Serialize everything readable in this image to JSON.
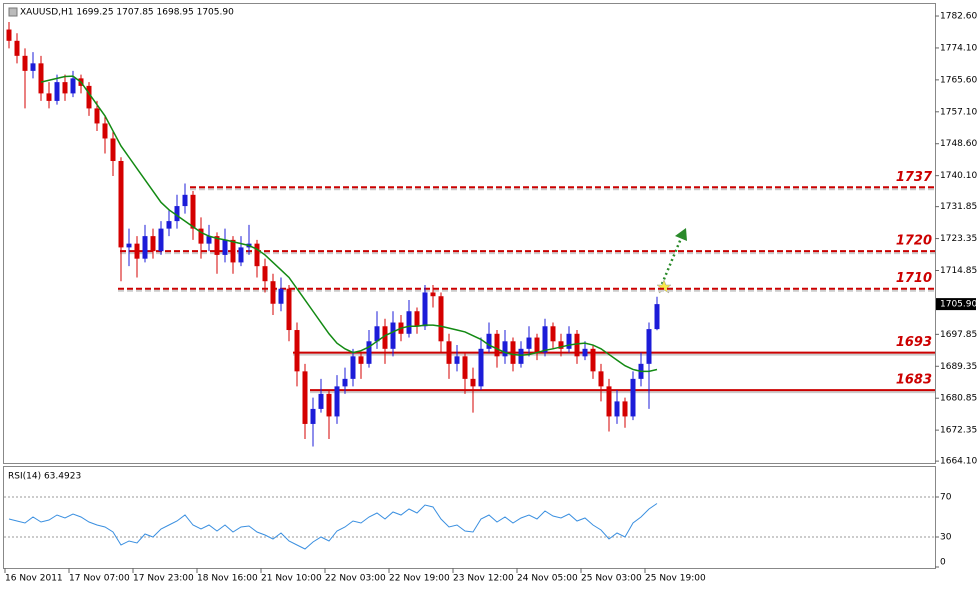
{
  "chart_data": [
    {
      "type": "candlestick",
      "title": "XAUUSD,H1  1699.25 1707.85 1698.95 1705.90",
      "categories": [
        "16 Nov 2011",
        null,
        null,
        null,
        null,
        null,
        null,
        null,
        "17 Nov 07:00",
        null,
        null,
        null,
        null,
        null,
        null,
        null,
        "17 Nov 23:00",
        null,
        null,
        null,
        null,
        null,
        null,
        null,
        "18 Nov 16:00",
        null,
        null,
        null,
        null,
        null,
        null,
        null,
        "21 Nov 10:00",
        null,
        null,
        null,
        null,
        null,
        null,
        null,
        "22 Nov 03:00",
        null,
        null,
        null,
        null,
        null,
        null,
        null,
        "22 Nov 19:00",
        null,
        null,
        null,
        null,
        null,
        null,
        null,
        "23 Nov 12:00",
        null,
        null,
        null,
        null,
        null,
        null,
        null,
        "24 Nov 05:00",
        null,
        null,
        null,
        null,
        null,
        null,
        null,
        "25 Nov 03:00",
        null,
        null,
        null,
        null,
        null,
        null,
        null,
        "25 Nov 19:00",
        null
      ],
      "ohlc": [
        [
          1779,
          1781,
          1774,
          1776
        ],
        [
          1776,
          1778,
          1770,
          1772
        ],
        [
          1772,
          1774,
          1758,
          1768
        ],
        [
          1768,
          1773,
          1766,
          1770
        ],
        [
          1770,
          1772,
          1760,
          1762
        ],
        [
          1762,
          1765,
          1758,
          1760
        ],
        [
          1760,
          1767,
          1759,
          1765
        ],
        [
          1765,
          1767,
          1760,
          1762
        ],
        [
          1762,
          1768,
          1761,
          1766
        ],
        [
          1766,
          1767,
          1762,
          1764
        ],
        [
          1764,
          1765,
          1756,
          1758
        ],
        [
          1758,
          1760,
          1752,
          1754
        ],
        [
          1754,
          1756,
          1746,
          1750
        ],
        [
          1750,
          1752,
          1740,
          1744
        ],
        [
          1744,
          1745,
          1712,
          1721
        ],
        [
          1721,
          1726,
          1716,
          1722
        ],
        [
          1722,
          1724,
          1713,
          1718
        ],
        [
          1718,
          1727,
          1717,
          1724
        ],
        [
          1724,
          1726,
          1718,
          1720
        ],
        [
          1720,
          1728,
          1719,
          1726
        ],
        [
          1726,
          1731,
          1724,
          1728
        ],
        [
          1728,
          1735,
          1726,
          1732
        ],
        [
          1732,
          1738,
          1730,
          1735
        ],
        [
          1735,
          1736,
          1723,
          1726
        ],
        [
          1726,
          1729,
          1718,
          1722
        ],
        [
          1722,
          1727,
          1720,
          1724
        ],
        [
          1724,
          1725,
          1714,
          1719
        ],
        [
          1719,
          1726,
          1717,
          1723
        ],
        [
          1723,
          1724,
          1714,
          1717
        ],
        [
          1717,
          1724,
          1716,
          1721
        ],
        [
          1721,
          1727,
          1719,
          1722
        ],
        [
          1722,
          1723,
          1713,
          1716
        ],
        [
          1716,
          1718,
          1709,
          1712
        ],
        [
          1712,
          1714,
          1703,
          1706
        ],
        [
          1706,
          1713,
          1704,
          1710
        ],
        [
          1710,
          1711,
          1696,
          1699
        ],
        [
          1699,
          1701,
          1684,
          1688
        ],
        [
          1688,
          1690,
          1670,
          1674
        ],
        [
          1674,
          1681,
          1668,
          1678
        ],
        [
          1678,
          1686,
          1677,
          1682
        ],
        [
          1682,
          1683,
          1670,
          1676
        ],
        [
          1676,
          1687,
          1674,
          1684
        ],
        [
          1684,
          1689,
          1682,
          1686
        ],
        [
          1686,
          1694,
          1684,
          1692
        ],
        [
          1692,
          1693,
          1686,
          1690
        ],
        [
          1690,
          1699,
          1689,
          1696
        ],
        [
          1696,
          1704,
          1694,
          1700
        ],
        [
          1700,
          1702,
          1690,
          1694
        ],
        [
          1694,
          1704,
          1692,
          1701
        ],
        [
          1701,
          1703,
          1696,
          1698
        ],
        [
          1698,
          1707,
          1697,
          1704
        ],
        [
          1704,
          1705,
          1698,
          1700
        ],
        [
          1700,
          1711,
          1699,
          1709
        ],
        [
          1709,
          1711,
          1705,
          1708
        ],
        [
          1708,
          1709,
          1693,
          1696
        ],
        [
          1696,
          1698,
          1686,
          1690
        ],
        [
          1690,
          1695,
          1688,
          1692
        ],
        [
          1692,
          1693,
          1682,
          1686
        ],
        [
          1686,
          1689,
          1677,
          1684
        ],
        [
          1684,
          1697,
          1683,
          1694
        ],
        [
          1694,
          1701,
          1693,
          1698
        ],
        [
          1698,
          1699,
          1689,
          1692
        ],
        [
          1692,
          1699,
          1690,
          1696
        ],
        [
          1696,
          1697,
          1688,
          1690
        ],
        [
          1690,
          1696,
          1689,
          1694
        ],
        [
          1694,
          1700,
          1692,
          1697
        ],
        [
          1697,
          1698,
          1691,
          1693
        ],
        [
          1693,
          1702,
          1692,
          1700
        ],
        [
          1700,
          1701,
          1694,
          1696
        ],
        [
          1696,
          1698,
          1692,
          1694
        ],
        [
          1694,
          1700,
          1693,
          1698
        ],
        [
          1698,
          1699,
          1690,
          1692
        ],
        [
          1692,
          1696,
          1691,
          1694
        ],
        [
          1694,
          1695,
          1686,
          1688
        ],
        [
          1688,
          1690,
          1680,
          1684
        ],
        [
          1684,
          1686,
          1672,
          1676
        ],
        [
          1676,
          1683,
          1674,
          1680
        ],
        [
          1680,
          1681,
          1673,
          1676
        ],
        [
          1676,
          1688,
          1675,
          1686
        ],
        [
          1686,
          1693,
          1684,
          1690
        ],
        [
          1690,
          1701,
          1678,
          1699.25
        ],
        [
          1699.25,
          1707.85,
          1698.95,
          1705.9
        ]
      ],
      "up_color": "#1c1cd8",
      "down_color": "#d40000",
      "ma": {
        "color": "#138a13",
        "values": [
          null,
          null,
          null,
          null,
          1765,
          1765.5,
          1766,
          1766.5,
          1766.6,
          1765,
          1762,
          1759,
          1756,
          1752,
          1748,
          1745,
          1742,
          1739,
          1736,
          1733,
          1731,
          1729.5,
          1728,
          1726.5,
          1725,
          1724,
          1723.4,
          1723,
          1722.5,
          1722,
          1721.5,
          1720.5,
          1719,
          1717,
          1715,
          1713,
          1710,
          1707,
          1704,
          1701,
          1698,
          1695.5,
          1694,
          1693,
          1693.5,
          1694.5,
          1696,
          1697.5,
          1698.5,
          1699.5,
          1700,
          1700,
          1700.3,
          1700.3,
          1700,
          1699.5,
          1699,
          1698.5,
          1697.5,
          1696.5,
          1695,
          1694,
          1693,
          1692.5,
          1692.3,
          1692.5,
          1693,
          1693.6,
          1694,
          1694.5,
          1695,
          1695.3,
          1695.5,
          1695,
          1694,
          1692.5,
          1691,
          1689.5,
          1688.5,
          1688,
          1688,
          1688.5
        ]
      },
      "levels": [
        {
          "value": 1737,
          "dashed": true
        },
        {
          "value": 1720,
          "dashed": true
        },
        {
          "value": 1710,
          "dashed": true
        },
        {
          "value": 1693,
          "dashed": false
        },
        {
          "value": 1683,
          "dashed": false
        }
      ],
      "level_color": "#cc0000",
      "last_price": {
        "value": 1705.9,
        "label": "1705.90"
      },
      "ylim": [
        1663.6,
        1785.8
      ],
      "yticks": [
        {
          "value": 1782.6,
          "label": "1782.60"
        },
        {
          "value": 1774.1,
          "label": "1774.10"
        },
        {
          "value": 1765.6,
          "label": "1765.60"
        },
        {
          "value": 1757.1,
          "label": "1757.10"
        },
        {
          "value": 1748.6,
          "label": "1748.60"
        },
        {
          "value": 1740.1,
          "label": "1740.10"
        },
        {
          "value": 1731.85,
          "label": "1731.85"
        },
        {
          "value": 1723.35,
          "label": "1723.35"
        },
        {
          "value": 1714.85,
          "label": "1714.85"
        },
        {
          "value": 1697.85,
          "label": "1697.85"
        },
        {
          "value": 1689.35,
          "label": "1689.35"
        },
        {
          "value": 1680.85,
          "label": "1680.85"
        },
        {
          "value": 1672.35,
          "label": "1672.35"
        },
        {
          "value": 1664.1,
          "label": "1664.10"
        }
      ]
    },
    {
      "type": "line",
      "title": "RSI(14) 63.4923",
      "color": "#3a8fe0",
      "values": [
        48,
        46,
        44,
        50,
        45,
        47,
        52,
        49,
        53,
        50,
        45,
        42,
        40,
        35,
        22,
        26,
        24,
        33,
        30,
        38,
        42,
        46,
        52,
        42,
        38,
        42,
        36,
        42,
        35,
        40,
        41,
        35,
        32,
        28,
        34,
        26,
        22,
        18,
        25,
        30,
        26,
        36,
        40,
        46,
        44,
        50,
        54,
        48,
        55,
        52,
        58,
        54,
        62,
        60,
        48,
        40,
        42,
        36,
        35,
        48,
        52,
        45,
        50,
        44,
        49,
        52,
        48,
        56,
        51,
        49,
        53,
        46,
        49,
        42,
        37,
        28,
        34,
        30,
        44,
        50,
        58,
        63.4923
      ],
      "ylim": [
        0,
        100
      ],
      "yticks": [
        70,
        30,
        0
      ]
    }
  ]
}
